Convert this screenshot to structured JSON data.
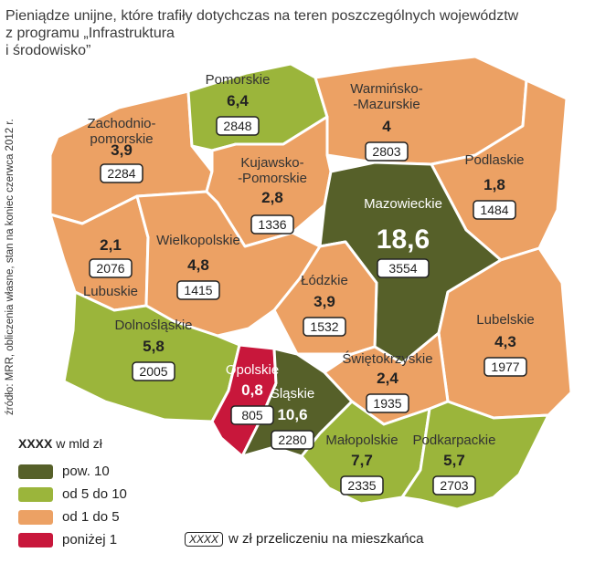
{
  "title": [
    "Pieniądze unijne, które trafiły dotychczas na teren poszczególnych województw",
    "z programu „Infrastruktura",
    "i środowisko”"
  ],
  "source": "źródło: MRR, obliczenia własne, stan na koniec czerwca 2012 r.",
  "colors": {
    "pow10": "#566029",
    "od5do10": "#9bb53b",
    "od1do5": "#eca164",
    "ponizej1": "#c8173b",
    "border": "#ffffff"
  },
  "regions": [
    {
      "key": "zachodniopomorskie",
      "name_lines": [
        "Zachodnio-",
        "pomorskie"
      ],
      "value": "3,9",
      "per_capita": "2284",
      "class": "od1do5"
    },
    {
      "key": "pomorskie",
      "name_lines": [
        "Pomorskie"
      ],
      "value": "6,4",
      "per_capita": "2848",
      "class": "od5do10"
    },
    {
      "key": "warminsko",
      "name_lines": [
        "Warmińsko-",
        "-Mazurskie"
      ],
      "value": "4",
      "per_capita": "2803",
      "class": "od1do5"
    },
    {
      "key": "podlaskie",
      "name_lines": [
        "Podlaskie"
      ],
      "value": "1,8",
      "per_capita": "1484",
      "class": "od1do5"
    },
    {
      "key": "kujawsko",
      "name_lines": [
        "Kujawsko-",
        "-Pomorskie"
      ],
      "value": "2,8",
      "per_capita": "1336",
      "class": "od1do5"
    },
    {
      "key": "mazowieckie",
      "name_lines": [
        "Mazowieckie"
      ],
      "value": "18,6",
      "per_capita": "3554",
      "class": "pow10"
    },
    {
      "key": "lubuskie",
      "name_lines": [
        "Lubuskie"
      ],
      "value": "2,1",
      "per_capita": "2076",
      "class": "od1do5"
    },
    {
      "key": "wielkopolskie",
      "name_lines": [
        "Wielkopolskie"
      ],
      "value": "4,8",
      "per_capita": "1415",
      "class": "od1do5"
    },
    {
      "key": "lodzkie",
      "name_lines": [
        "Łódzkie"
      ],
      "value": "3,9",
      "per_capita": "1532",
      "class": "od1do5"
    },
    {
      "key": "lubelskie",
      "name_lines": [
        "Lubelskie"
      ],
      "value": "4,3",
      "per_capita": "1977",
      "class": "od1do5"
    },
    {
      "key": "dolnoslaskie",
      "name_lines": [
        "Dolnośląskie"
      ],
      "value": "5,8",
      "per_capita": "2005",
      "class": "od5do10"
    },
    {
      "key": "opolskie",
      "name_lines": [
        "Opolskie"
      ],
      "value": "0,8",
      "per_capita": "805",
      "class": "ponizej1"
    },
    {
      "key": "slaskie",
      "name_lines": [
        "Śląskie"
      ],
      "value": "10,6",
      "per_capita": "2280",
      "class": "pow10"
    },
    {
      "key": "swietokrzyskie",
      "name_lines": [
        "Świętokrzyskie"
      ],
      "value": "2,4",
      "per_capita": "1935",
      "class": "od1do5"
    },
    {
      "key": "malopolskie",
      "name_lines": [
        "Małopolskie"
      ],
      "value": "7,7",
      "per_capita": "2335",
      "class": "od5do10"
    },
    {
      "key": "podkarpackie",
      "name_lines": [
        "Podkarpackie"
      ],
      "value": "5,7",
      "per_capita": "2703",
      "class": "od5do10"
    }
  ],
  "legend": {
    "head_bold": "XXXX",
    "head_text": "w mld zł",
    "items": [
      {
        "label": "pow. 10",
        "class": "pow10"
      },
      {
        "label": "od 5 do 10",
        "class": "od5do10"
      },
      {
        "label": "od 1 do 5",
        "class": "od1do5"
      },
      {
        "label": "poniżej 1",
        "class": "ponizej1"
      }
    ],
    "note_box": "XXXX",
    "note_text": "w zł przeliczeniu na mieszkańca"
  }
}
